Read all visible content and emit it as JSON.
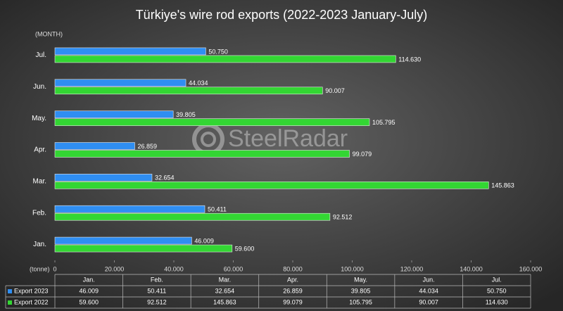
{
  "chart_data": {
    "type": "hbar",
    "title": "Türkiye's wire rod exports (2022-2023 January-July)",
    "y_label": "(MONTH)",
    "x_label": "(tonne)",
    "watermark": "SteelRadar",
    "categories": [
      "Jan.",
      "Feb.",
      "Mar.",
      "Apr.",
      "May.",
      "Jun.",
      "Jul."
    ],
    "series": [
      {
        "name": "Export 2023",
        "color": "#2f8ef2",
        "values": [
          46009,
          50411,
          32654,
          26859,
          39805,
          44034,
          50750
        ],
        "value_labels": [
          "46.009",
          "50.411",
          "32.654",
          "26.859",
          "39.805",
          "44.034",
          "50.750"
        ]
      },
      {
        "name": "Export 2022",
        "color": "#33d633",
        "values": [
          59600,
          92512,
          145863,
          99079,
          105795,
          90007,
          114630
        ],
        "value_labels": [
          "59.600",
          "92.512",
          "145.863",
          "99.079",
          "105.795",
          "90.007",
          "114.630"
        ]
      }
    ],
    "xlim": [
      0,
      160000
    ],
    "xticks": [
      0,
      {
        "value": 20000,
        "label": "20.000"
      },
      {
        "value": 40000,
        "label": "40.000"
      },
      {
        "value": 60000,
        "label": "60.000"
      },
      {
        "value": 80000,
        "label": "80.000"
      },
      {
        "value": 100000,
        "label": "100.000"
      },
      {
        "value": 120000,
        "label": "120.000"
      },
      {
        "value": 140000,
        "label": "140.000"
      },
      {
        "value": 160000,
        "label": "160.000"
      }
    ]
  }
}
